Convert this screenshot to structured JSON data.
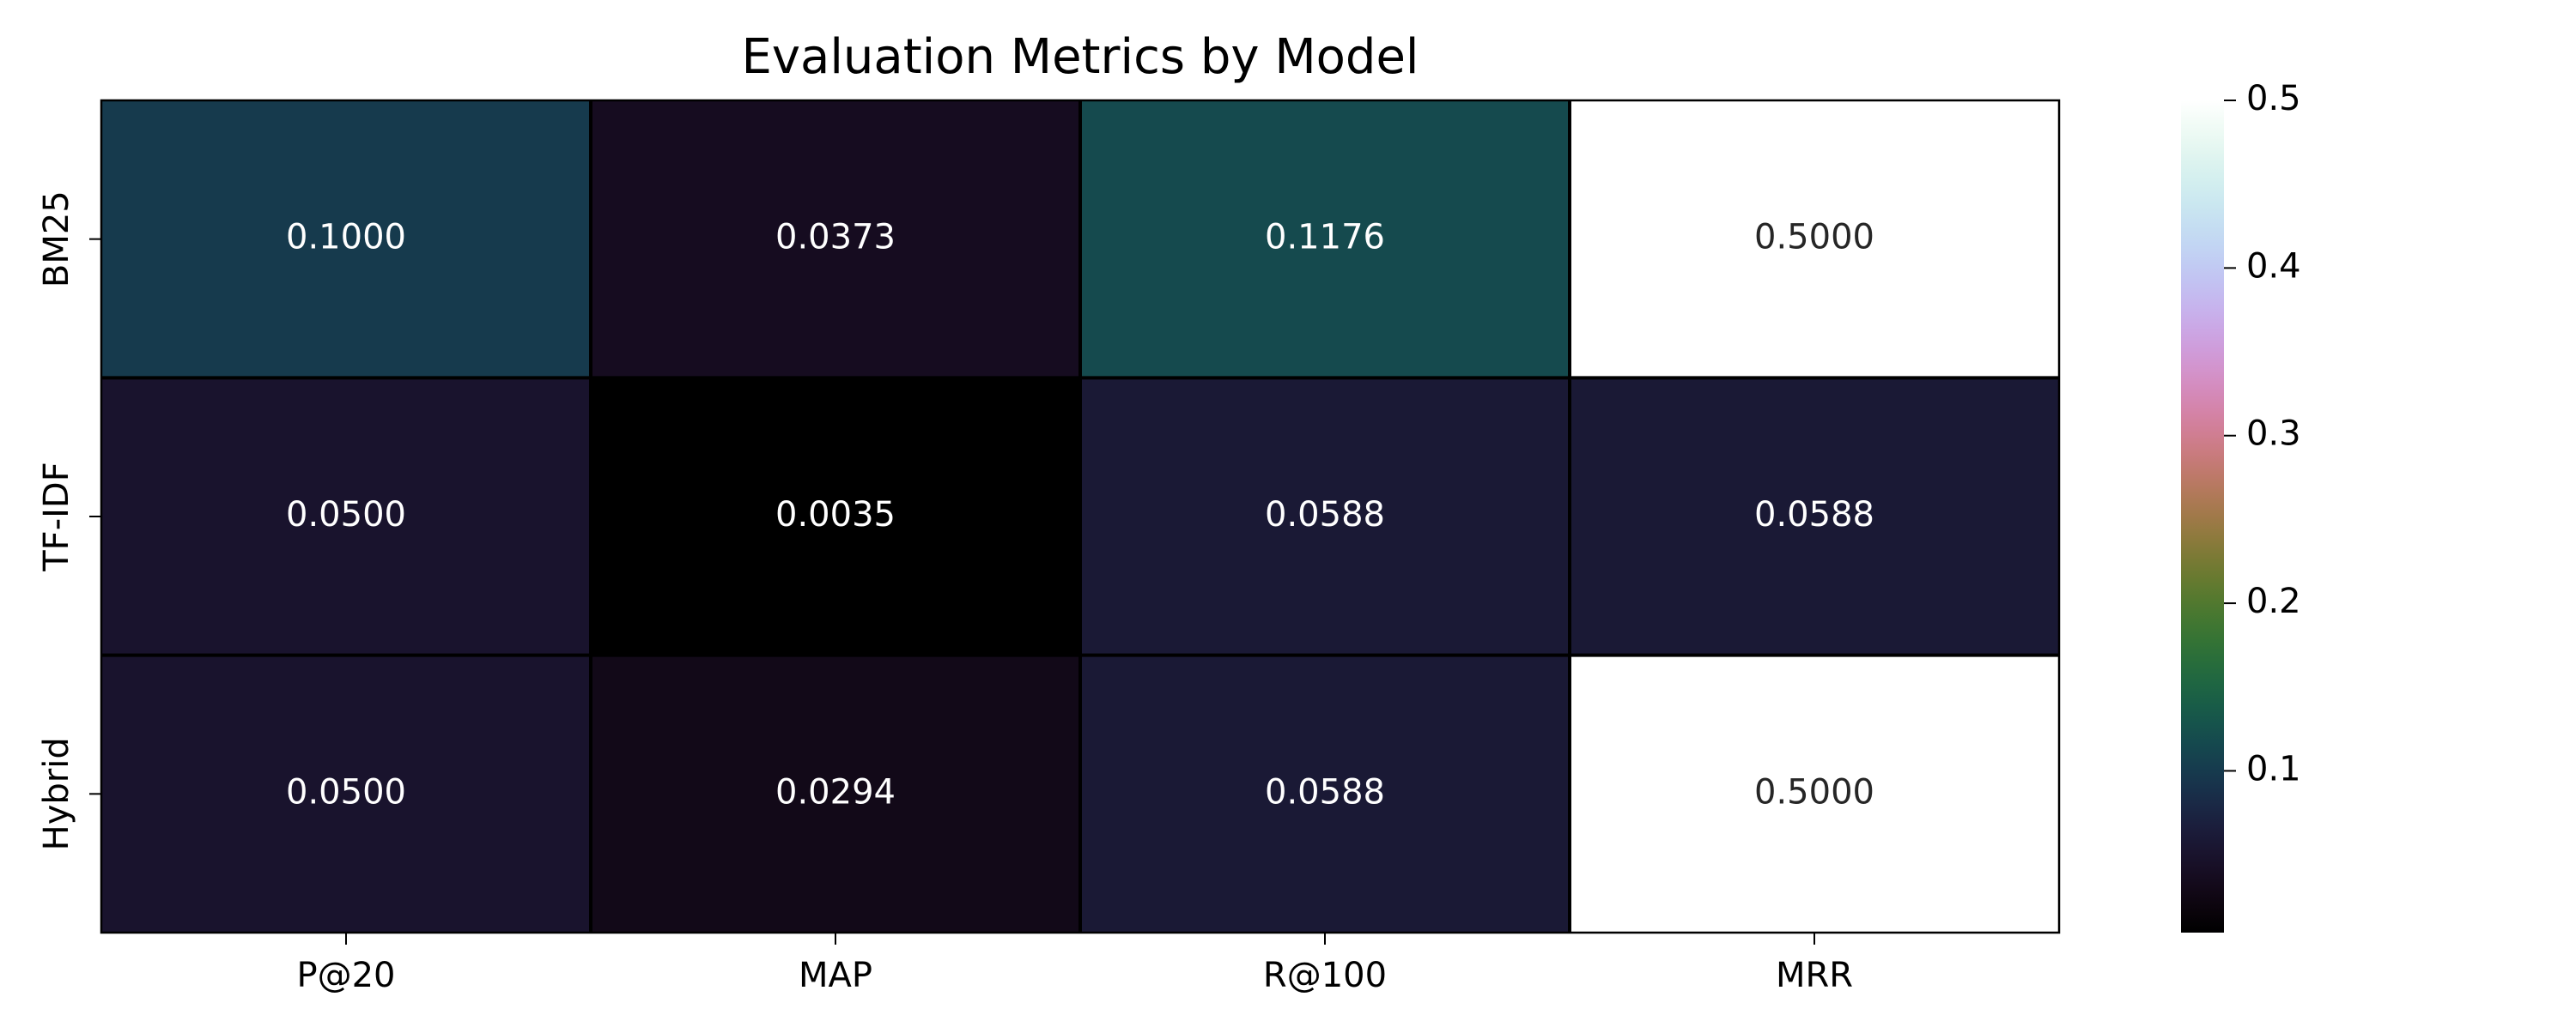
{
  "chart_data": {
    "type": "heatmap",
    "title": "Evaluation Metrics by Model",
    "xlabel": "",
    "ylabel": "",
    "rows": [
      "BM25",
      "TF-IDF",
      "Hybrid"
    ],
    "columns": [
      "P@20",
      "MAP",
      "R@100",
      "MRR"
    ],
    "values": [
      [
        0.1,
        0.0373,
        0.1176,
        0.5
      ],
      [
        0.05,
        0.0035,
        0.0588,
        0.0588
      ],
      [
        0.05,
        0.0294,
        0.0588,
        0.5
      ]
    ],
    "cell_labels": [
      [
        "0.1000",
        "0.0373",
        "0.1176",
        "0.5000"
      ],
      [
        "0.0500",
        "0.0035",
        "0.0588",
        "0.0588"
      ],
      [
        "0.0500",
        "0.0294",
        "0.0588",
        "0.5000"
      ]
    ],
    "colormap": "cubehelix",
    "colorbar": {
      "range": [
        0.0035,
        0.5
      ],
      "ticks": [
        0.1,
        0.2,
        0.3,
        0.4,
        0.5
      ],
      "tick_labels": [
        "0.1",
        "0.2",
        "0.3",
        "0.4",
        "0.5"
      ]
    },
    "grid": false,
    "legend": "colorbar-right"
  }
}
